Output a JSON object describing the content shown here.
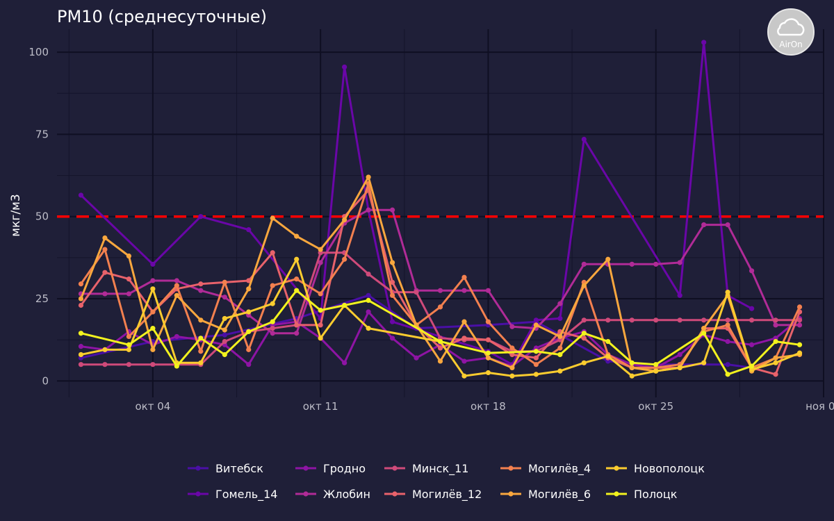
{
  "chart_data": {
    "type": "line",
    "title": "PM10 (среднесуточные)",
    "xlabel": "",
    "ylabel": "мкг/м3",
    "x_axis": {
      "type": "date",
      "min": "2020-09-30",
      "max": "2020-11-01"
    },
    "ylim": [
      -5,
      107
    ],
    "y_ticks": [
      0,
      25,
      50,
      75,
      100
    ],
    "x_ticks": [
      {
        "date": "2020-10-04",
        "label": "окт 04"
      },
      {
        "date": "2020-10-11",
        "label": "окт 11"
      },
      {
        "date": "2020-10-18",
        "label": "окт 18"
      },
      {
        "date": "2020-10-25",
        "label": "окт 25"
      },
      {
        "date": "2020-11-01",
        "label": "ноя 01"
      }
    ],
    "grid": true,
    "legend_position": "bottom",
    "threshold": {
      "value": 50,
      "color": "#ff0000",
      "style": "dashed"
    },
    "logo": {
      "text": "AirOn",
      "icon": "cloud-icon"
    },
    "series": [
      {
        "name": "Витебск",
        "color": "#4a0fa6",
        "points": [
          [
            "2020-10-01",
            7
          ],
          [
            "2020-10-04",
            12
          ],
          [
            "2020-10-07",
            14
          ],
          [
            "2020-10-10",
            19
          ],
          [
            "2020-10-13",
            26
          ],
          [
            "2020-10-15",
            16
          ],
          [
            "2020-10-18",
            17
          ],
          [
            "2020-10-20",
            18
          ],
          [
            "2020-10-23",
            6
          ],
          [
            "2020-10-25",
            5
          ],
          [
            "2020-10-28",
            5
          ],
          [
            "2020-10-29",
            4
          ]
        ]
      },
      {
        "name": "Гомель_14",
        "color": "#6a06a8",
        "points": [
          [
            "2020-10-01",
            56.5
          ],
          [
            "2020-10-04",
            35.5
          ],
          [
            "2020-10-06",
            50
          ],
          [
            "2020-10-08",
            46
          ],
          [
            "2020-10-11",
            19
          ],
          [
            "2020-10-12",
            95.5
          ],
          [
            "2020-10-13",
            52
          ],
          [
            "2020-10-14",
            18
          ],
          [
            "2020-10-18",
            9
          ],
          [
            "2020-10-19",
            5
          ],
          [
            "2020-10-20",
            18.5
          ],
          [
            "2020-10-21",
            19
          ],
          [
            "2020-10-22",
            73.5
          ],
          [
            "2020-10-26",
            26
          ],
          [
            "2020-10-27",
            103
          ],
          [
            "2020-10-28",
            26
          ],
          [
            "2020-10-29",
            22
          ]
        ]
      },
      {
        "name": "Гродно",
        "color": "#8e14a4",
        "points": [
          [
            "2020-10-01",
            10.5
          ],
          [
            "2020-10-02",
            9.5
          ],
          [
            "2020-10-03",
            15
          ],
          [
            "2020-10-04",
            11
          ],
          [
            "2020-10-05",
            13.5
          ],
          [
            "2020-10-06",
            12.5
          ],
          [
            "2020-10-07",
            11
          ],
          [
            "2020-10-08",
            5
          ],
          [
            "2020-10-09",
            17
          ],
          [
            "2020-10-10",
            18
          ],
          [
            "2020-10-11",
            13
          ],
          [
            "2020-10-12",
            5.5
          ],
          [
            "2020-10-13",
            21
          ],
          [
            "2020-10-14",
            13
          ],
          [
            "2020-10-15",
            7
          ],
          [
            "2020-10-16",
            11
          ],
          [
            "2020-10-17",
            6
          ],
          [
            "2020-10-18",
            7
          ],
          [
            "2020-10-19",
            4.5
          ],
          [
            "2020-10-20",
            10
          ],
          [
            "2020-10-21",
            13
          ],
          [
            "2020-10-22",
            15
          ],
          [
            "2020-10-23",
            8
          ],
          [
            "2020-10-24",
            5
          ],
          [
            "2020-10-25",
            4
          ],
          [
            "2020-10-26",
            8
          ],
          [
            "2020-10-27",
            14
          ],
          [
            "2020-10-28",
            12
          ],
          [
            "2020-10-29",
            11
          ],
          [
            "2020-10-30",
            13
          ],
          [
            "2020-10-31",
            19
          ]
        ]
      },
      {
        "name": "Жлобин",
        "color": "#b02b97",
        "points": [
          [
            "2020-10-01",
            26.5
          ],
          [
            "2020-10-02",
            26.5
          ],
          [
            "2020-10-03",
            26.5
          ],
          [
            "2020-10-04",
            30.5
          ],
          [
            "2020-10-05",
            30.5
          ],
          [
            "2020-10-06",
            27.5
          ],
          [
            "2020-10-07",
            25.5
          ],
          [
            "2020-10-08",
            20
          ],
          [
            "2020-10-09",
            14.5
          ],
          [
            "2020-10-10",
            14.5
          ],
          [
            "2020-10-11",
            36
          ],
          [
            "2020-10-12",
            48
          ],
          [
            "2020-10-13",
            52
          ],
          [
            "2020-10-14",
            52
          ],
          [
            "2020-10-15",
            27.5
          ],
          [
            "2020-10-16",
            27.5
          ],
          [
            "2020-10-17",
            27.5
          ],
          [
            "2020-10-18",
            27.5
          ],
          [
            "2020-10-19",
            16.5
          ],
          [
            "2020-10-20",
            16
          ],
          [
            "2020-10-21",
            23.5
          ],
          [
            "2020-10-22",
            35.5
          ],
          [
            "2020-10-23",
            35.5
          ],
          [
            "2020-10-24",
            35.5
          ],
          [
            "2020-10-25",
            35.5
          ],
          [
            "2020-10-26",
            36
          ],
          [
            "2020-10-27",
            47.5
          ],
          [
            "2020-10-28",
            47.5
          ],
          [
            "2020-10-29",
            33.5
          ],
          [
            "2020-10-30",
            17
          ],
          [
            "2020-10-31",
            17
          ]
        ]
      },
      {
        "name": "Минск_11",
        "color": "#cf4a7a",
        "points": [
          [
            "2020-10-01",
            5
          ],
          [
            "2020-10-02",
            5
          ],
          [
            "2020-10-03",
            5
          ],
          [
            "2020-10-04",
            5
          ],
          [
            "2020-10-05",
            5
          ],
          [
            "2020-10-06",
            5
          ],
          [
            "2020-10-07",
            12
          ],
          [
            "2020-10-08",
            15
          ],
          [
            "2020-10-09",
            16
          ],
          [
            "2020-10-10",
            17
          ],
          [
            "2020-10-11",
            39
          ],
          [
            "2020-10-12",
            39
          ],
          [
            "2020-10-13",
            32.5
          ],
          [
            "2020-10-14",
            27
          ],
          [
            "2020-10-15",
            27
          ],
          [
            "2020-10-16",
            13
          ],
          [
            "2020-10-17",
            12.5
          ],
          [
            "2020-10-18",
            12.5
          ],
          [
            "2020-10-19",
            9
          ],
          [
            "2020-10-20",
            9
          ],
          [
            "2020-10-21",
            12.5
          ],
          [
            "2020-10-22",
            18.5
          ],
          [
            "2020-10-23",
            18.5
          ],
          [
            "2020-10-24",
            18.5
          ],
          [
            "2020-10-25",
            18.5
          ],
          [
            "2020-10-26",
            18.5
          ],
          [
            "2020-10-27",
            18.5
          ],
          [
            "2020-10-28",
            18.5
          ],
          [
            "2020-10-29",
            18.5
          ],
          [
            "2020-10-30",
            18.5
          ],
          [
            "2020-10-31",
            18.5
          ]
        ]
      },
      {
        "name": "Могилёв_12",
        "color": "#e8626b",
        "points": [
          [
            "2020-10-01",
            23
          ],
          [
            "2020-10-02",
            33
          ],
          [
            "2020-10-03",
            31
          ],
          [
            "2020-10-04",
            21
          ],
          [
            "2020-10-05",
            28
          ],
          [
            "2020-10-06",
            29.5
          ],
          [
            "2020-10-07",
            30
          ],
          [
            "2020-10-08",
            30.5
          ],
          [
            "2020-10-09",
            39
          ],
          [
            "2020-10-10",
            17
          ],
          [
            "2020-10-11",
            17
          ],
          [
            "2020-10-12",
            50
          ],
          [
            "2020-10-13",
            58
          ],
          [
            "2020-10-14",
            30
          ],
          [
            "2020-10-15",
            17
          ],
          [
            "2020-10-16",
            10
          ],
          [
            "2020-10-17",
            13
          ],
          [
            "2020-10-18",
            12.5
          ],
          [
            "2020-10-19",
            8
          ],
          [
            "2020-10-20",
            7
          ],
          [
            "2020-10-21",
            15
          ],
          [
            "2020-10-22",
            13
          ],
          [
            "2020-10-23",
            7
          ],
          [
            "2020-10-24",
            4
          ],
          [
            "2020-10-25",
            4
          ],
          [
            "2020-10-26",
            4
          ],
          [
            "2020-10-27",
            16
          ],
          [
            "2020-10-28",
            16
          ],
          [
            "2020-10-29",
            4
          ],
          [
            "2020-10-30",
            2
          ],
          [
            "2020-10-31",
            21
          ]
        ]
      },
      {
        "name": "Могилёв_4",
        "color": "#f3804f",
        "points": [
          [
            "2020-10-01",
            29.5
          ],
          [
            "2020-10-02",
            40
          ],
          [
            "2020-10-03",
            13.5
          ],
          [
            "2020-10-04",
            21
          ],
          [
            "2020-10-05",
            29
          ],
          [
            "2020-10-06",
            9
          ],
          [
            "2020-10-07",
            30
          ],
          [
            "2020-10-08",
            9.5
          ],
          [
            "2020-10-09",
            29
          ],
          [
            "2020-10-10",
            31
          ],
          [
            "2020-10-11",
            26.5
          ],
          [
            "2020-10-12",
            37
          ],
          [
            "2020-10-13",
            60
          ],
          [
            "2020-10-14",
            26
          ],
          [
            "2020-10-15",
            17
          ],
          [
            "2020-10-16",
            22.5
          ],
          [
            "2020-10-17",
            31.5
          ],
          [
            "2020-10-18",
            18
          ],
          [
            "2020-10-19",
            10
          ],
          [
            "2020-10-20",
            5
          ],
          [
            "2020-10-21",
            10
          ],
          [
            "2020-10-22",
            30
          ],
          [
            "2020-10-23",
            8
          ],
          [
            "2020-10-24",
            4
          ],
          [
            "2020-10-25",
            4
          ],
          [
            "2020-10-26",
            5
          ],
          [
            "2020-10-27",
            15
          ],
          [
            "2020-10-28",
            17
          ],
          [
            "2020-10-29",
            4
          ],
          [
            "2020-10-30",
            7
          ],
          [
            "2020-10-31",
            22.5
          ]
        ]
      },
      {
        "name": "Могилёв_6",
        "color": "#f9a73e",
        "points": [
          [
            "2020-10-01",
            25
          ],
          [
            "2020-10-02",
            43.5
          ],
          [
            "2020-10-03",
            38
          ],
          [
            "2020-10-04",
            9.5
          ],
          [
            "2020-10-05",
            26
          ],
          [
            "2020-10-06",
            18.5
          ],
          [
            "2020-10-07",
            15.5
          ],
          [
            "2020-10-08",
            28
          ],
          [
            "2020-10-09",
            49.5
          ],
          [
            "2020-10-10",
            44
          ],
          [
            "2020-10-11",
            40
          ],
          [
            "2020-10-12",
            49
          ],
          [
            "2020-10-13",
            62
          ],
          [
            "2020-10-14",
            36
          ],
          [
            "2020-10-15",
            17
          ],
          [
            "2020-10-16",
            6
          ],
          [
            "2020-10-17",
            18
          ],
          [
            "2020-10-18",
            7
          ],
          [
            "2020-10-19",
            4
          ],
          [
            "2020-10-20",
            17
          ],
          [
            "2020-10-21",
            13.5
          ],
          [
            "2020-10-22",
            29
          ],
          [
            "2020-10-23",
            37
          ],
          [
            "2020-10-24",
            4
          ],
          [
            "2020-10-25",
            3
          ],
          [
            "2020-10-26",
            4
          ],
          [
            "2020-10-27",
            16
          ],
          [
            "2020-10-28",
            26
          ],
          [
            "2020-10-29",
            3
          ],
          [
            "2020-10-30",
            7
          ],
          [
            "2020-10-31",
            8
          ]
        ]
      },
      {
        "name": "Новополоцк",
        "color": "#fbcc2f",
        "points": [
          [
            "2020-10-01",
            8
          ],
          [
            "2020-10-02",
            9.5
          ],
          [
            "2020-10-03",
            9.5
          ],
          [
            "2020-10-04",
            28
          ],
          [
            "2020-10-05",
            5.5
          ],
          [
            "2020-10-06",
            5.5
          ],
          [
            "2020-10-07",
            19
          ],
          [
            "2020-10-08",
            21
          ],
          [
            "2020-10-09",
            23.5
          ],
          [
            "2020-10-10",
            37
          ],
          [
            "2020-10-11",
            13
          ],
          [
            "2020-10-12",
            23
          ],
          [
            "2020-10-13",
            16
          ],
          [
            "2020-10-16",
            12
          ],
          [
            "2020-10-17",
            1.5
          ],
          [
            "2020-10-18",
            2.5
          ],
          [
            "2020-10-19",
            1.5
          ],
          [
            "2020-10-20",
            2
          ],
          [
            "2020-10-21",
            3
          ],
          [
            "2020-10-22",
            5.5
          ],
          [
            "2020-10-23",
            7.5
          ],
          [
            "2020-10-24",
            1.5
          ],
          [
            "2020-10-25",
            3
          ],
          [
            "2020-10-26",
            4
          ],
          [
            "2020-10-27",
            5.5
          ],
          [
            "2020-10-28",
            27
          ],
          [
            "2020-10-29",
            3.5
          ],
          [
            "2020-10-30",
            5.5
          ],
          [
            "2020-10-31",
            8.5
          ]
        ]
      },
      {
        "name": "Полоцк",
        "color": "#f2f21e",
        "points": [
          [
            "2020-10-01",
            14.5
          ],
          [
            "2020-10-03",
            11
          ],
          [
            "2020-10-04",
            16
          ],
          [
            "2020-10-05",
            4.5
          ],
          [
            "2020-10-06",
            13
          ],
          [
            "2020-10-07",
            8
          ],
          [
            "2020-10-08",
            15
          ],
          [
            "2020-10-09",
            18
          ],
          [
            "2020-10-10",
            27.5
          ],
          [
            "2020-10-11",
            21.5
          ],
          [
            "2020-10-12",
            23
          ],
          [
            "2020-10-13",
            24.5
          ],
          [
            "2020-10-16",
            12
          ],
          [
            "2020-10-18",
            8.5
          ],
          [
            "2020-10-20",
            9
          ],
          [
            "2020-10-21",
            8
          ],
          [
            "2020-10-22",
            14.5
          ],
          [
            "2020-10-23",
            12
          ],
          [
            "2020-10-24",
            5.5
          ],
          [
            "2020-10-25",
            5
          ],
          [
            "2020-10-27",
            14.5
          ],
          [
            "2020-10-28",
            2
          ],
          [
            "2020-10-29",
            4.5
          ],
          [
            "2020-10-30",
            12
          ],
          [
            "2020-10-31",
            11
          ]
        ]
      }
    ]
  }
}
